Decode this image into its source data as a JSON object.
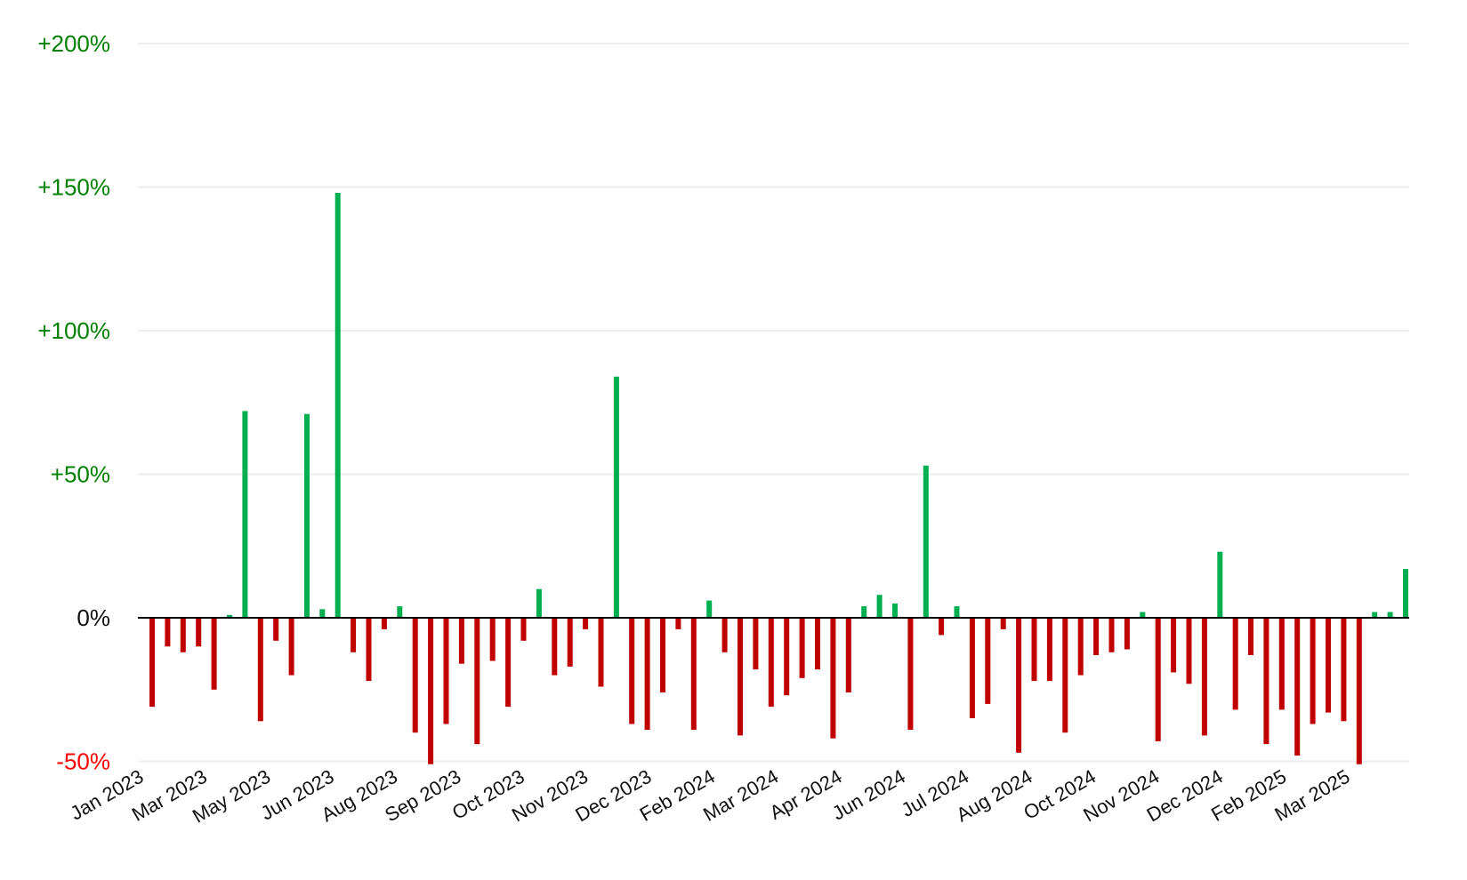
{
  "chart_data": {
    "type": "bar",
    "title": "",
    "xlabel": "",
    "ylabel": "",
    "ylim": [
      -50,
      200
    ],
    "y_ticks": [
      {
        "value": 200,
        "label": "+200%"
      },
      {
        "value": 150,
        "label": "+150%"
      },
      {
        "value": 100,
        "label": "+100%"
      },
      {
        "value": 50,
        "label": "+50%"
      },
      {
        "value": 0,
        "label": "0%"
      },
      {
        "value": -50,
        "label": "-50%"
      }
    ],
    "x_tick_labels": [
      "Jan 2023",
      "Mar 2023",
      "May 2023",
      "Jun 2023",
      "Aug 2023",
      "Sep 2023",
      "Oct 2023",
      "Nov 2023",
      "Dec 2023",
      "Feb 2024",
      "Mar 2024",
      "Apr 2024",
      "Jun 2024",
      "Jul 2024",
      "Aug 2024",
      "Oct 2024",
      "Nov 2024",
      "Dec 2024",
      "Feb 2025",
      "Mar 2025"
    ],
    "grid": true,
    "colors": {
      "positive": "#00b050",
      "negative": "#c00000",
      "positive_label": "#008000",
      "negative_label": "#ff0000",
      "zero_label": "#111111",
      "grid": "#eeeeee",
      "axis": "#000000"
    },
    "series": [
      {
        "values": [
          -31,
          -10,
          -12,
          -10,
          -25,
          1,
          72,
          -36,
          -8,
          -20,
          71,
          3,
          148,
          -12,
          -22,
          -4,
          4,
          -40,
          -51,
          -37,
          -16,
          -44,
          -15,
          -31,
          -8,
          10,
          -20,
          -17,
          -4,
          -24,
          84,
          -37,
          -39,
          -26,
          -4,
          -39,
          6,
          -12,
          -41,
          -18,
          -31,
          -27,
          -21,
          -18,
          -42,
          -26,
          4,
          8,
          5,
          -39,
          53,
          -6,
          4,
          -35,
          -30,
          -4,
          -47,
          -22,
          -22,
          -40,
          -20,
          -13,
          -12,
          -11,
          2,
          -43,
          -19,
          -23,
          -41,
          23,
          -32,
          -13,
          -44,
          -32,
          -48,
          -37,
          -33,
          -36,
          -51,
          2,
          2,
          17
        ]
      }
    ]
  }
}
